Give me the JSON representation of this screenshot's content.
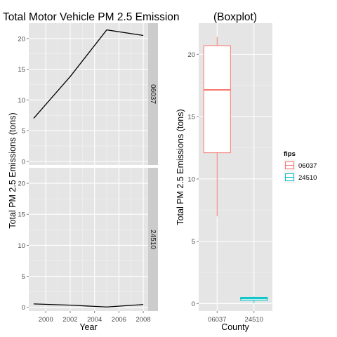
{
  "chart_data": [
    {
      "type": "line",
      "title": "Total Motor Vehicle PM 2.5 Emission",
      "xlabel": "Year",
      "ylabel": "Total PM 2.5 Emissions (tons)",
      "x_ticks": [
        "2000",
        "2002",
        "2004",
        "2006",
        "2008"
      ],
      "y_ticks": [
        "0",
        "5",
        "10",
        "15",
        "20"
      ],
      "xlim": [
        1998.6,
        2008.4
      ],
      "ylim": [
        -0.6,
        22.5
      ],
      "grid": true,
      "facets": [
        {
          "label": "06037",
          "x": [
            1999,
            2002,
            2005,
            2008
          ],
          "y": [
            7.0,
            13.8,
            21.4,
            20.5
          ]
        },
        {
          "label": "24510",
          "x": [
            1999,
            2002,
            2005,
            2008
          ],
          "y": [
            0.55,
            0.35,
            0.05,
            0.45
          ]
        }
      ]
    },
    {
      "type": "boxplot",
      "title": "(Boxplot)",
      "xlabel": "County",
      "ylabel": "Total PM 2.5 Emissions (tons)",
      "categories": [
        "06037",
        "24510"
      ],
      "y_ticks": [
        "0",
        "5",
        "10",
        "15",
        "20"
      ],
      "ylim": [
        -0.6,
        22.5
      ],
      "grid": true,
      "legend": {
        "title": "fips",
        "position": "right",
        "entries": [
          "06037",
          "24510"
        ]
      },
      "boxes": [
        {
          "category": "06037",
          "min": 7.0,
          "q1": 12.1,
          "median": 17.15,
          "q3": 20.7,
          "max": 21.4,
          "color": "#F8766D"
        },
        {
          "category": "24510",
          "min": 0.05,
          "q1": 0.25,
          "median": 0.4,
          "q3": 0.5,
          "max": 0.55,
          "color": "#00BFC4"
        }
      ]
    }
  ],
  "colors": {
    "panel_bg": "#e5e5e5",
    "grid": "#ffffff",
    "strip_bg": "#cccccc",
    "line": "#000000"
  }
}
